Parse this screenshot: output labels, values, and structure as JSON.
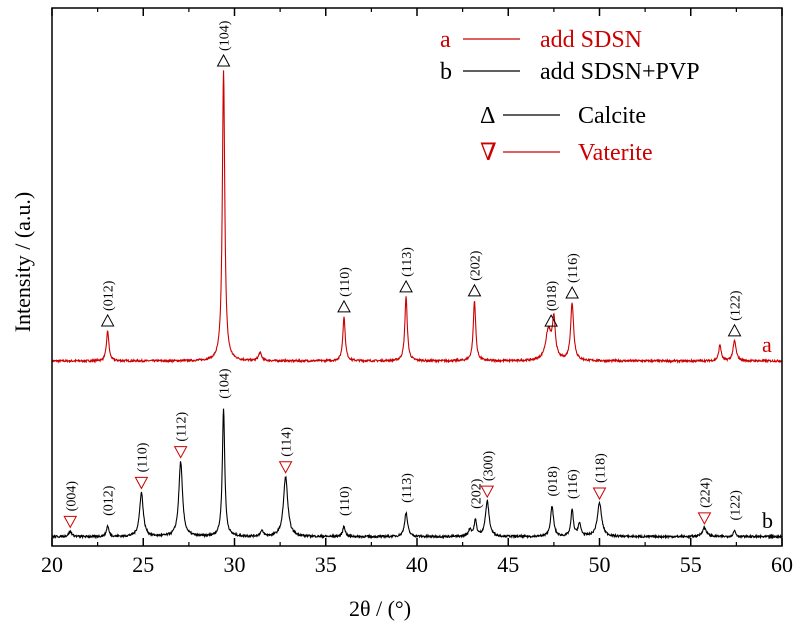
{
  "chart_data": {
    "type": "line",
    "title": "",
    "xlabel": "2θ / (°)",
    "ylabel": "Intensity / (a.u.)",
    "xlim": [
      20,
      60
    ],
    "x_ticks": [
      20,
      25,
      30,
      35,
      40,
      45,
      50,
      55,
      60
    ],
    "grid": false,
    "legend_position": "top-right",
    "legend": [
      {
        "marker": "a",
        "text": "add SDSN",
        "color": "#cc0000",
        "kind": "line"
      },
      {
        "marker": "b",
        "text": "add SDSN+PVP",
        "color": "#000000",
        "kind": "line"
      },
      {
        "marker": "Δ",
        "text": "Calcite",
        "color": "#000000",
        "kind": "symbol"
      },
      {
        "marker": "∇",
        "text": "Vaterite",
        "color": "#cc0000",
        "kind": "symbol"
      }
    ],
    "series": [
      {
        "name": "add SDSN",
        "curve_label": "a",
        "color": "#cc0000",
        "baseline": 0.05,
        "noise": 0.01,
        "peaks": [
          {
            "x": 23.05,
            "h": 0.3,
            "w": 0.08
          },
          {
            "x": 29.4,
            "h": 2.9,
            "w": 0.08
          },
          {
            "x": 31.4,
            "h": 0.08,
            "w": 0.1
          },
          {
            "x": 36.0,
            "h": 0.44,
            "w": 0.08
          },
          {
            "x": 39.4,
            "h": 0.64,
            "w": 0.08
          },
          {
            "x": 43.15,
            "h": 0.6,
            "w": 0.08
          },
          {
            "x": 47.2,
            "h": 0.3,
            "w": 0.18
          },
          {
            "x": 47.5,
            "h": 0.38,
            "w": 0.1
          },
          {
            "x": 48.5,
            "h": 0.57,
            "w": 0.1
          },
          {
            "x": 56.6,
            "h": 0.16,
            "w": 0.08
          },
          {
            "x": 57.4,
            "h": 0.2,
            "w": 0.1
          }
        ],
        "annotations": [
          {
            "x": 23.05,
            "label": "(012)",
            "phase": "calcite"
          },
          {
            "x": 29.4,
            "label": "(104)",
            "phase": "calcite"
          },
          {
            "x": 36.0,
            "label": "(110)",
            "phase": "calcite"
          },
          {
            "x": 39.4,
            "label": "(113)",
            "phase": "calcite"
          },
          {
            "x": 43.15,
            "label": "(202)",
            "phase": "calcite"
          },
          {
            "x": 47.35,
            "label": "(018)",
            "phase": "calcite"
          },
          {
            "x": 48.5,
            "label": "(116)",
            "phase": "calcite"
          },
          {
            "x": 57.4,
            "label": "(122)",
            "phase": "calcite"
          }
        ]
      },
      {
        "name": "add SDSN+PVP",
        "curve_label": "b",
        "color": "#000000",
        "baseline": 0.06,
        "noise": 0.012,
        "peaks": [
          {
            "x": 21.0,
            "h": 0.06,
            "w": 0.1
          },
          {
            "x": 23.05,
            "h": 0.12,
            "w": 0.08
          },
          {
            "x": 24.9,
            "h": 0.5,
            "w": 0.12
          },
          {
            "x": 27.05,
            "h": 0.85,
            "w": 0.12
          },
          {
            "x": 29.4,
            "h": 1.45,
            "w": 0.08
          },
          {
            "x": 31.5,
            "h": 0.06,
            "w": 0.1
          },
          {
            "x": 32.8,
            "h": 0.68,
            "w": 0.14
          },
          {
            "x": 36.0,
            "h": 0.12,
            "w": 0.08
          },
          {
            "x": 39.4,
            "h": 0.27,
            "w": 0.1
          },
          {
            "x": 42.9,
            "h": 0.08,
            "w": 0.1
          },
          {
            "x": 43.2,
            "h": 0.18,
            "w": 0.08
          },
          {
            "x": 43.85,
            "h": 0.4,
            "w": 0.12
          },
          {
            "x": 47.4,
            "h": 0.34,
            "w": 0.1
          },
          {
            "x": 48.5,
            "h": 0.3,
            "w": 0.08
          },
          {
            "x": 48.9,
            "h": 0.14,
            "w": 0.1
          },
          {
            "x": 50.0,
            "h": 0.38,
            "w": 0.14
          },
          {
            "x": 55.75,
            "h": 0.1,
            "w": 0.14
          },
          {
            "x": 57.4,
            "h": 0.07,
            "w": 0.08
          }
        ],
        "annotations": [
          {
            "x": 21.0,
            "label": "(004)",
            "phase": "vaterite"
          },
          {
            "x": 23.05,
            "label": "(012)",
            "phase": "none"
          },
          {
            "x": 24.9,
            "label": "(110)",
            "phase": "vaterite"
          },
          {
            "x": 27.05,
            "label": "(112)",
            "phase": "vaterite"
          },
          {
            "x": 29.4,
            "label": "(104)",
            "phase": "none"
          },
          {
            "x": 32.8,
            "label": "(114)",
            "phase": "vaterite"
          },
          {
            "x": 36.0,
            "label": "(110)",
            "phase": "none"
          },
          {
            "x": 39.4,
            "label": "(113)",
            "phase": "none"
          },
          {
            "x": 43.2,
            "label": "(202)",
            "phase": "none"
          },
          {
            "x": 43.85,
            "label": "(300)",
            "phase": "vaterite"
          },
          {
            "x": 47.4,
            "label": "(018)",
            "phase": "none"
          },
          {
            "x": 48.5,
            "label": "(116)",
            "phase": "none"
          },
          {
            "x": 50.0,
            "label": "(118)",
            "phase": "vaterite"
          },
          {
            "x": 55.75,
            "label": "(224)",
            "phase": "vaterite"
          },
          {
            "x": 57.4,
            "label": "(122)",
            "phase": "none"
          }
        ]
      }
    ]
  }
}
